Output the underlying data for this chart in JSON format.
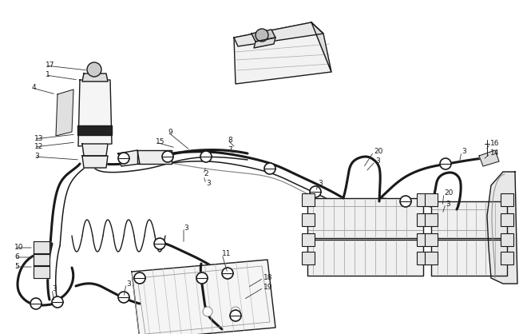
{
  "bg_color": "#ffffff",
  "line_color": "#1a1a1a",
  "fig_width": 6.5,
  "fig_height": 4.18,
  "dpi": 100,
  "lw": 1.0,
  "lw_hose": 2.2,
  "lw_thin": 0.7
}
